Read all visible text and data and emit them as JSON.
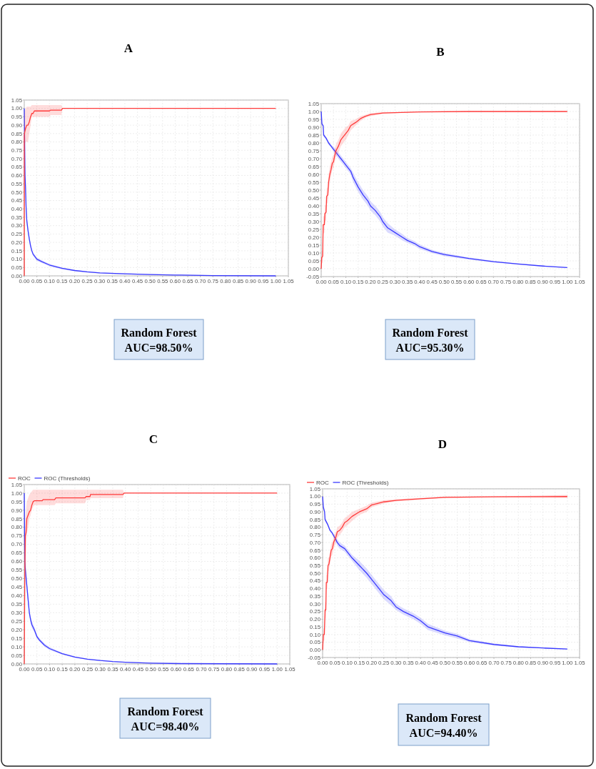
{
  "chart_data": [
    {
      "type": "line",
      "title": "A",
      "annotations": [
        "Random Forest",
        "AUC=98.50%"
      ],
      "grid": true,
      "line_style": "solid",
      "xlim": [
        0,
        1.05
      ],
      "ylim": [
        0,
        1.05
      ],
      "xticks": [
        {
          "value": 0,
          "label": "0.00"
        },
        {
          "value": 0.05,
          "label": "0.05"
        },
        {
          "value": 0.1,
          "label": "0.10"
        },
        {
          "value": 0.15,
          "label": "0.15"
        },
        {
          "value": 0.2,
          "label": "0.20"
        },
        {
          "value": 0.25,
          "label": "0.25"
        },
        {
          "value": 0.3,
          "label": "0.30"
        },
        {
          "value": 0.35,
          "label": "0.35"
        },
        {
          "value": 0.4,
          "label": "0.40"
        },
        {
          "value": 0.45,
          "label": "0.45"
        },
        {
          "value": 0.5,
          "label": "0.50"
        },
        {
          "value": 0.55,
          "label": "0.55"
        },
        {
          "value": 0.6,
          "label": "0.60"
        },
        {
          "value": 0.65,
          "label": "0.65"
        },
        {
          "value": 0.7,
          "label": "0.70"
        },
        {
          "value": 0.75,
          "label": "0.75"
        },
        {
          "value": 0.8,
          "label": "0.80"
        },
        {
          "value": 0.85,
          "label": "0.85"
        },
        {
          "value": 0.9,
          "label": "0.90"
        },
        {
          "value": 0.95,
          "label": "0.95"
        },
        {
          "value": 1,
          "label": "1.00"
        },
        {
          "value": 1.05,
          "label": "1.05"
        }
      ],
      "yticks": [
        {
          "value": 0,
          "label": "0.00"
        },
        {
          "value": 0.05,
          "label": "0.05"
        },
        {
          "value": 0.1,
          "label": "0.10"
        },
        {
          "value": 0.15,
          "label": "0.15"
        },
        {
          "value": 0.2,
          "label": "0.20"
        },
        {
          "value": 0.25,
          "label": "0.25"
        },
        {
          "value": 0.3,
          "label": "0.30"
        },
        {
          "value": 0.35,
          "label": "0.35"
        },
        {
          "value": 0.4,
          "label": "0.40"
        },
        {
          "value": 0.45,
          "label": "0.45"
        },
        {
          "value": 0.5,
          "label": "0.50"
        },
        {
          "value": 0.55,
          "label": "0.55"
        },
        {
          "value": 0.6,
          "label": "0.60"
        },
        {
          "value": 0.65,
          "label": "0.65"
        },
        {
          "value": 0.7,
          "label": "0.70"
        },
        {
          "value": 0.75,
          "label": "0.75"
        },
        {
          "value": 0.8,
          "label": "0.80"
        },
        {
          "value": 0.85,
          "label": "0.85"
        },
        {
          "value": 0.9,
          "label": "0.90"
        },
        {
          "value": 0.95,
          "label": "0.95"
        },
        {
          "value": 1,
          "label": "1.00"
        },
        {
          "value": 1.05,
          "label": "1.05"
        }
      ],
      "series": [
        {
          "color": "#ff3b3b",
          "x": [
            0,
            0,
            0.002,
            0.005,
            0.01,
            0.015,
            0.02,
            0.025,
            0.03,
            0.035,
            0.04,
            0.1,
            0.105,
            0.148,
            0.152,
            1.0
          ],
          "values": [
            0,
            0.84,
            0.86,
            0.88,
            0.9,
            0.9,
            0.92,
            0.95,
            0.97,
            0.97,
            0.985,
            0.985,
            0.99,
            0.99,
            1.0,
            1.0
          ],
          "lower": [
            0,
            0.7,
            0.78,
            0.8,
            0.8,
            0.8,
            0.85,
            0.9,
            0.95,
            0.95,
            0.95,
            0.95,
            0.96,
            0.96,
            1.0,
            1.0
          ],
          "upper": [
            0,
            0.95,
            0.98,
            1.0,
            1.01,
            1.01,
            1.01,
            1.01,
            1.02,
            1.02,
            1.02,
            1.02,
            1.02,
            1.02,
            1.0,
            1.0
          ]
        },
        {
          "color": "#3a3aff",
          "x": [
            0,
            0.003,
            0.005,
            0.007,
            0.01,
            0.015,
            0.02,
            0.025,
            0.03,
            0.035,
            0.04,
            0.05,
            0.07,
            0.1,
            0.15,
            0.2,
            0.25,
            0.3,
            0.4,
            0.5,
            0.6,
            0.75,
            1.0
          ],
          "values": [
            1.0,
            0.6,
            0.53,
            0.42,
            0.33,
            0.27,
            0.22,
            0.18,
            0.15,
            0.13,
            0.12,
            0.1,
            0.085,
            0.065,
            0.045,
            0.032,
            0.024,
            0.018,
            0.012,
            0.008,
            0.005,
            0.002,
            0.0
          ],
          "lower": [
            1.0,
            0.57,
            0.5,
            0.39,
            0.3,
            0.25,
            0.2,
            0.165,
            0.14,
            0.12,
            0.11,
            0.09,
            0.077,
            0.058,
            0.04,
            0.028,
            0.02,
            0.015,
            0.009,
            0.005,
            0.003,
            0.0,
            0.0
          ],
          "upper": [
            1.0,
            0.63,
            0.56,
            0.45,
            0.36,
            0.29,
            0.24,
            0.195,
            0.16,
            0.14,
            0.13,
            0.11,
            0.093,
            0.072,
            0.05,
            0.036,
            0.028,
            0.021,
            0.015,
            0.011,
            0.007,
            0.004,
            0.0
          ]
        }
      ]
    },
    {
      "type": "line",
      "title": "B",
      "annotations": [
        "Random Forest",
        "AUC=95.30%"
      ],
      "grid": true,
      "line_style": "solid",
      "xlim": [
        0,
        1.05
      ],
      "ylim": [
        -0.05,
        1.05
      ],
      "xticks": [
        {
          "value": 0,
          "label": "0.00"
        },
        {
          "value": 0.05,
          "label": "0.05"
        },
        {
          "value": 0.1,
          "label": "0.10"
        },
        {
          "value": 0.15,
          "label": "0.15"
        },
        {
          "value": 0.2,
          "label": "0.20"
        },
        {
          "value": 0.25,
          "label": "0.25"
        },
        {
          "value": 0.3,
          "label": "0.30"
        },
        {
          "value": 0.35,
          "label": "0.35"
        },
        {
          "value": 0.4,
          "label": "0.40"
        },
        {
          "value": 0.45,
          "label": "0.45"
        },
        {
          "value": 0.5,
          "label": "0.50"
        },
        {
          "value": 0.55,
          "label": "0.55"
        },
        {
          "value": 0.6,
          "label": "0.60"
        },
        {
          "value": 0.65,
          "label": "0.65"
        },
        {
          "value": 0.7,
          "label": "0.70"
        },
        {
          "value": 0.75,
          "label": "0.75"
        },
        {
          "value": 0.8,
          "label": "0.80"
        },
        {
          "value": 0.85,
          "label": "0.85"
        },
        {
          "value": 0.9,
          "label": "0.90"
        },
        {
          "value": 0.95,
          "label": "0.95"
        },
        {
          "value": 1,
          "label": "1.00"
        },
        {
          "value": 1.05,
          "label": "1.05"
        }
      ],
      "yticks": [
        {
          "value": -0.05,
          "label": "-0.05"
        },
        {
          "value": 0,
          "label": "0.00"
        },
        {
          "value": 0.05,
          "label": "0.05"
        },
        {
          "value": 0.1,
          "label": "0.10"
        },
        {
          "value": 0.15,
          "label": "0.15"
        },
        {
          "value": 0.2,
          "label": "0.20"
        },
        {
          "value": 0.25,
          "label": "0.25"
        },
        {
          "value": 0.3,
          "label": "0.30"
        },
        {
          "value": 0.35,
          "label": "0.35"
        },
        {
          "value": 0.4,
          "label": "0.40"
        },
        {
          "value": 0.45,
          "label": "0.45"
        },
        {
          "value": 0.5,
          "label": "0.50"
        },
        {
          "value": 0.55,
          "label": "0.55"
        },
        {
          "value": 0.6,
          "label": "0.60"
        },
        {
          "value": 0.65,
          "label": "0.65"
        },
        {
          "value": 0.7,
          "label": "0.70"
        },
        {
          "value": 0.75,
          "label": "0.75"
        },
        {
          "value": 0.8,
          "label": "0.80"
        },
        {
          "value": 0.85,
          "label": "0.85"
        },
        {
          "value": 0.9,
          "label": "0.90"
        },
        {
          "value": 0.95,
          "label": "0.95"
        },
        {
          "value": 1,
          "label": "1.00"
        },
        {
          "value": 1.05,
          "label": "1.05"
        }
      ],
      "series": [
        {
          "color": "#ff3b3b",
          "x": [
            0,
            0.002,
            0.006,
            0.008,
            0.013,
            0.015,
            0.02,
            0.022,
            0.027,
            0.03,
            0.035,
            0.04,
            0.045,
            0.05,
            0.055,
            0.06,
            0.07,
            0.08,
            0.09,
            0.1,
            0.11,
            0.12,
            0.14,
            0.16,
            0.18,
            0.2,
            0.25,
            0.3,
            0.4,
            0.6,
            1.0
          ],
          "values": [
            0,
            0.07,
            0.08,
            0.28,
            0.28,
            0.35,
            0.36,
            0.46,
            0.47,
            0.55,
            0.6,
            0.63,
            0.67,
            0.68,
            0.72,
            0.75,
            0.78,
            0.82,
            0.84,
            0.86,
            0.88,
            0.91,
            0.93,
            0.955,
            0.97,
            0.98,
            0.99,
            0.993,
            0.997,
            1.0,
            1.0
          ],
          "lower": [
            -0.02,
            0.03,
            0.04,
            0.22,
            0.23,
            0.3,
            0.31,
            0.41,
            0.42,
            0.5,
            0.55,
            0.59,
            0.63,
            0.64,
            0.68,
            0.71,
            0.74,
            0.78,
            0.8,
            0.82,
            0.85,
            0.88,
            0.91,
            0.94,
            0.96,
            0.97,
            0.985,
            0.99,
            0.995,
            1.0,
            1.0
          ],
          "upper": [
            0.02,
            0.11,
            0.12,
            0.33,
            0.34,
            0.4,
            0.41,
            0.51,
            0.52,
            0.6,
            0.65,
            0.68,
            0.71,
            0.72,
            0.76,
            0.79,
            0.82,
            0.86,
            0.88,
            0.9,
            0.91,
            0.94,
            0.95,
            0.97,
            0.98,
            0.99,
            0.995,
            0.996,
            0.999,
            1.0,
            1.0
          ]
        },
        {
          "color": "#3a3aff",
          "x": [
            0,
            0.003,
            0.008,
            0.01,
            0.02,
            0.03,
            0.04,
            0.05,
            0.06,
            0.07,
            0.08,
            0.09,
            0.1,
            0.12,
            0.13,
            0.15,
            0.17,
            0.19,
            0.2,
            0.22,
            0.24,
            0.25,
            0.27,
            0.3,
            0.33,
            0.35,
            0.38,
            0.4,
            0.45,
            0.5,
            0.6,
            0.7,
            0.8,
            0.9,
            1.0
          ],
          "values": [
            1.0,
            0.92,
            0.91,
            0.85,
            0.83,
            0.8,
            0.78,
            0.76,
            0.74,
            0.72,
            0.7,
            0.68,
            0.66,
            0.62,
            0.58,
            0.52,
            0.47,
            0.43,
            0.4,
            0.37,
            0.33,
            0.3,
            0.26,
            0.23,
            0.2,
            0.18,
            0.16,
            0.14,
            0.11,
            0.09,
            0.065,
            0.045,
            0.03,
            0.017,
            0.007
          ],
          "lower": [
            1.0,
            0.91,
            0.9,
            0.84,
            0.82,
            0.79,
            0.77,
            0.745,
            0.72,
            0.7,
            0.68,
            0.66,
            0.64,
            0.6,
            0.55,
            0.49,
            0.44,
            0.4,
            0.37,
            0.34,
            0.3,
            0.27,
            0.23,
            0.21,
            0.18,
            0.165,
            0.145,
            0.125,
            0.1,
            0.08,
            0.058,
            0.04,
            0.026,
            0.014,
            0.005
          ],
          "upper": [
            1.0,
            0.93,
            0.92,
            0.86,
            0.84,
            0.81,
            0.79,
            0.775,
            0.76,
            0.74,
            0.72,
            0.7,
            0.68,
            0.64,
            0.61,
            0.55,
            0.5,
            0.46,
            0.43,
            0.4,
            0.36,
            0.33,
            0.29,
            0.25,
            0.22,
            0.195,
            0.175,
            0.155,
            0.12,
            0.1,
            0.072,
            0.05,
            0.034,
            0.02,
            0.009
          ]
        }
      ]
    },
    {
      "type": "line",
      "title": "C",
      "annotations": [
        "Random Forest",
        "AUC=98.40%"
      ],
      "grid": true,
      "line_style": "solid",
      "legend": "top left",
      "xlim": [
        0,
        1.05
      ],
      "ylim": [
        0,
        1.05
      ],
      "xticks": [
        {
          "value": 0,
          "label": "0.00"
        },
        {
          "value": 0.05,
          "label": "0.05"
        },
        {
          "value": 0.1,
          "label": "0.10"
        },
        {
          "value": 0.15,
          "label": "0.15"
        },
        {
          "value": 0.2,
          "label": "0.20"
        },
        {
          "value": 0.25,
          "label": "0.25"
        },
        {
          "value": 0.3,
          "label": "0.30"
        },
        {
          "value": 0.35,
          "label": "0.35"
        },
        {
          "value": 0.4,
          "label": "0.40"
        },
        {
          "value": 0.45,
          "label": "0.45"
        },
        {
          "value": 0.5,
          "label": "0.50"
        },
        {
          "value": 0.55,
          "label": "0.55"
        },
        {
          "value": 0.6,
          "label": "0.60"
        },
        {
          "value": 0.65,
          "label": "0.65"
        },
        {
          "value": 0.7,
          "label": "0.70"
        },
        {
          "value": 0.75,
          "label": "0.75"
        },
        {
          "value": 0.8,
          "label": "0.80"
        },
        {
          "value": 0.85,
          "label": "0.85"
        },
        {
          "value": 0.9,
          "label": "0.90"
        },
        {
          "value": 0.95,
          "label": "0.95"
        },
        {
          "value": 1,
          "label": "1.00"
        },
        {
          "value": 1.05,
          "label": "1.05"
        }
      ],
      "yticks": [
        {
          "value": 0,
          "label": "0.00"
        },
        {
          "value": 0.05,
          "label": "0.05"
        },
        {
          "value": 0.1,
          "label": "0.10"
        },
        {
          "value": 0.15,
          "label": "0.15"
        },
        {
          "value": 0.2,
          "label": "0.20"
        },
        {
          "value": 0.25,
          "label": "0.25"
        },
        {
          "value": 0.3,
          "label": "0.30"
        },
        {
          "value": 0.35,
          "label": "0.35"
        },
        {
          "value": 0.4,
          "label": "0.40"
        },
        {
          "value": 0.45,
          "label": "0.45"
        },
        {
          "value": 0.5,
          "label": "0.50"
        },
        {
          "value": 0.55,
          "label": "0.55"
        },
        {
          "value": 0.6,
          "label": "0.60"
        },
        {
          "value": 0.65,
          "label": "0.65"
        },
        {
          "value": 0.7,
          "label": "0.70"
        },
        {
          "value": 0.75,
          "label": "0.75"
        },
        {
          "value": 0.8,
          "label": "0.80"
        },
        {
          "value": 0.85,
          "label": "0.85"
        },
        {
          "value": 0.9,
          "label": "0.90"
        },
        {
          "value": 0.95,
          "label": "0.95"
        },
        {
          "value": 1,
          "label": "1.00"
        },
        {
          "value": 1.05,
          "label": "1.05"
        }
      ],
      "series": [
        {
          "name": "ROC",
          "color": "#ff3b3b",
          "x": [
            0,
            0.002,
            0.004,
            0.007,
            0.01,
            0.015,
            0.02,
            0.025,
            0.03,
            0.035,
            0.04,
            0.07,
            0.075,
            0.12,
            0.125,
            0.24,
            0.245,
            0.26,
            0.262,
            0.39,
            0.395,
            1.0
          ],
          "values": [
            0,
            0.5,
            0.75,
            0.77,
            0.85,
            0.87,
            0.89,
            0.9,
            0.93,
            0.95,
            0.955,
            0.955,
            0.962,
            0.962,
            0.972,
            0.972,
            0.98,
            0.98,
            0.992,
            0.992,
            1.0,
            1.0
          ],
          "lower": [
            0,
            0.3,
            0.6,
            0.65,
            0.75,
            0.8,
            0.85,
            0.87,
            0.9,
            0.92,
            0.93,
            0.93,
            0.93,
            0.93,
            0.94,
            0.94,
            0.96,
            0.96,
            0.97,
            0.97,
            1.0,
            1.0
          ],
          "upper": [
            0,
            0.65,
            0.85,
            0.9,
            0.95,
            0.97,
            0.99,
            1.0,
            1.01,
            1.02,
            1.02,
            1.02,
            1.02,
            1.02,
            1.02,
            1.02,
            1.02,
            1.02,
            1.02,
            1.02,
            1.0,
            1.0
          ]
        },
        {
          "name": "ROC (Thresholds)",
          "color": "#3a3aff",
          "x": [
            0,
            0.002,
            0.005,
            0.01,
            0.015,
            0.02,
            0.025,
            0.03,
            0.04,
            0.05,
            0.06,
            0.08,
            0.1,
            0.15,
            0.2,
            0.25,
            0.3,
            0.35,
            0.4,
            0.5,
            0.62,
            1.0
          ],
          "values": [
            1.0,
            0.6,
            0.54,
            0.46,
            0.38,
            0.3,
            0.26,
            0.23,
            0.2,
            0.16,
            0.14,
            0.11,
            0.09,
            0.06,
            0.04,
            0.028,
            0.02,
            0.014,
            0.01,
            0.005,
            0.002,
            0.0
          ],
          "lower": [
            1.0,
            0.56,
            0.5,
            0.43,
            0.35,
            0.28,
            0.24,
            0.21,
            0.185,
            0.15,
            0.13,
            0.1,
            0.082,
            0.055,
            0.036,
            0.025,
            0.017,
            0.011,
            0.008,
            0.003,
            0.0,
            0.0
          ],
          "upper": [
            1.0,
            0.64,
            0.58,
            0.49,
            0.41,
            0.32,
            0.28,
            0.25,
            0.215,
            0.17,
            0.15,
            0.12,
            0.098,
            0.065,
            0.044,
            0.031,
            0.023,
            0.017,
            0.012,
            0.007,
            0.004,
            0.004
          ]
        }
      ]
    },
    {
      "type": "line",
      "title": "D",
      "annotations": [
        "Random Forest",
        "AUC=94.40%"
      ],
      "grid": true,
      "line_style": "solid",
      "legend": "top left",
      "xlim": [
        0,
        1.05
      ],
      "ylim": [
        -0.05,
        1.05
      ],
      "xticks": [
        {
          "value": 0,
          "label": "0.00"
        },
        {
          "value": 0.05,
          "label": "0.05"
        },
        {
          "value": 0.1,
          "label": "0.10"
        },
        {
          "value": 0.15,
          "label": "0.15"
        },
        {
          "value": 0.2,
          "label": "0.20"
        },
        {
          "value": 0.25,
          "label": "0.25"
        },
        {
          "value": 0.3,
          "label": "0.30"
        },
        {
          "value": 0.35,
          "label": "0.35"
        },
        {
          "value": 0.4,
          "label": "0.40"
        },
        {
          "value": 0.45,
          "label": "0.45"
        },
        {
          "value": 0.5,
          "label": "0.50"
        },
        {
          "value": 0.55,
          "label": "0.55"
        },
        {
          "value": 0.6,
          "label": "0.60"
        },
        {
          "value": 0.65,
          "label": "0.65"
        },
        {
          "value": 0.7,
          "label": "0.70"
        },
        {
          "value": 0.75,
          "label": "0.75"
        },
        {
          "value": 0.8,
          "label": "0.80"
        },
        {
          "value": 0.85,
          "label": "0.85"
        },
        {
          "value": 0.9,
          "label": "0.90"
        },
        {
          "value": 0.95,
          "label": "0.95"
        },
        {
          "value": 1,
          "label": "1.00"
        },
        {
          "value": 1.05,
          "label": "1.05"
        }
      ],
      "yticks": [
        {
          "value": -0.05,
          "label": "-0.05"
        },
        {
          "value": 0,
          "label": "0.00"
        },
        {
          "value": 0.05,
          "label": "0.05"
        },
        {
          "value": 0.1,
          "label": "0.10"
        },
        {
          "value": 0.15,
          "label": "0.15"
        },
        {
          "value": 0.2,
          "label": "0.20"
        },
        {
          "value": 0.25,
          "label": "0.25"
        },
        {
          "value": 0.3,
          "label": "0.30"
        },
        {
          "value": 0.35,
          "label": "0.35"
        },
        {
          "value": 0.4,
          "label": "0.40"
        },
        {
          "value": 0.45,
          "label": "0.45"
        },
        {
          "value": 0.5,
          "label": "0.50"
        },
        {
          "value": 0.55,
          "label": "0.55"
        },
        {
          "value": 0.6,
          "label": "0.60"
        },
        {
          "value": 0.65,
          "label": "0.65"
        },
        {
          "value": 0.7,
          "label": "0.70"
        },
        {
          "value": 0.75,
          "label": "0.75"
        },
        {
          "value": 0.8,
          "label": "0.80"
        },
        {
          "value": 0.85,
          "label": "0.85"
        },
        {
          "value": 0.9,
          "label": "0.90"
        },
        {
          "value": 0.95,
          "label": "0.95"
        },
        {
          "value": 1,
          "label": "1.00"
        },
        {
          "value": 1.05,
          "label": "1.05"
        }
      ],
      "series": [
        {
          "name": "ROC",
          "color": "#ff3b3b",
          "x": [
            0,
            0.003,
            0.007,
            0.01,
            0.013,
            0.015,
            0.019,
            0.022,
            0.026,
            0.03,
            0.035,
            0.04,
            0.045,
            0.05,
            0.055,
            0.06,
            0.07,
            0.08,
            0.09,
            0.1,
            0.12,
            0.15,
            0.18,
            0.2,
            0.25,
            0.3,
            0.4,
            0.5,
            0.7,
            1.0
          ],
          "values": [
            0,
            0.1,
            0.1,
            0.26,
            0.26,
            0.44,
            0.44,
            0.55,
            0.56,
            0.6,
            0.65,
            0.66,
            0.7,
            0.72,
            0.74,
            0.77,
            0.78,
            0.8,
            0.83,
            0.84,
            0.87,
            0.9,
            0.92,
            0.945,
            0.965,
            0.975,
            0.985,
            0.995,
            0.998,
            1.0
          ],
          "lower": [
            -0.02,
            0.06,
            0.06,
            0.2,
            0.21,
            0.39,
            0.4,
            0.5,
            0.52,
            0.56,
            0.61,
            0.62,
            0.66,
            0.68,
            0.7,
            0.73,
            0.75,
            0.77,
            0.8,
            0.81,
            0.84,
            0.88,
            0.9,
            0.93,
            0.955,
            0.968,
            0.98,
            0.99,
            0.995,
            0.99
          ],
          "upper": [
            0.02,
            0.14,
            0.14,
            0.31,
            0.31,
            0.49,
            0.49,
            0.6,
            0.6,
            0.64,
            0.69,
            0.7,
            0.74,
            0.76,
            0.77,
            0.8,
            0.81,
            0.83,
            0.86,
            0.87,
            0.9,
            0.92,
            0.94,
            0.96,
            0.975,
            0.982,
            0.99,
            1.0,
            1.0,
            1.01
          ]
        },
        {
          "name": "ROC (Thresholds)",
          "color": "#3a3aff",
          "x": [
            0,
            0.003,
            0.008,
            0.01,
            0.02,
            0.03,
            0.04,
            0.05,
            0.06,
            0.07,
            0.09,
            0.1,
            0.12,
            0.15,
            0.18,
            0.2,
            0.23,
            0.25,
            0.28,
            0.3,
            0.33,
            0.37,
            0.4,
            0.43,
            0.5,
            0.55,
            0.6,
            0.7,
            0.8,
            0.9,
            1.0
          ],
          "values": [
            1.0,
            0.93,
            0.9,
            0.85,
            0.82,
            0.78,
            0.76,
            0.73,
            0.7,
            0.68,
            0.66,
            0.64,
            0.6,
            0.55,
            0.5,
            0.46,
            0.4,
            0.36,
            0.32,
            0.28,
            0.25,
            0.22,
            0.19,
            0.15,
            0.11,
            0.09,
            0.06,
            0.035,
            0.02,
            0.012,
            0.005
          ],
          "lower": [
            1.0,
            0.92,
            0.89,
            0.84,
            0.81,
            0.77,
            0.75,
            0.72,
            0.68,
            0.66,
            0.64,
            0.62,
            0.58,
            0.52,
            0.47,
            0.43,
            0.37,
            0.33,
            0.29,
            0.26,
            0.23,
            0.2,
            0.17,
            0.13,
            0.095,
            0.075,
            0.05,
            0.028,
            0.015,
            0.009,
            0.003
          ],
          "upper": [
            1.0,
            0.94,
            0.91,
            0.86,
            0.83,
            0.79,
            0.77,
            0.74,
            0.72,
            0.7,
            0.68,
            0.66,
            0.62,
            0.58,
            0.53,
            0.49,
            0.43,
            0.39,
            0.35,
            0.3,
            0.27,
            0.24,
            0.21,
            0.17,
            0.125,
            0.105,
            0.07,
            0.042,
            0.025,
            0.015,
            0.007
          ]
        }
      ]
    }
  ]
}
